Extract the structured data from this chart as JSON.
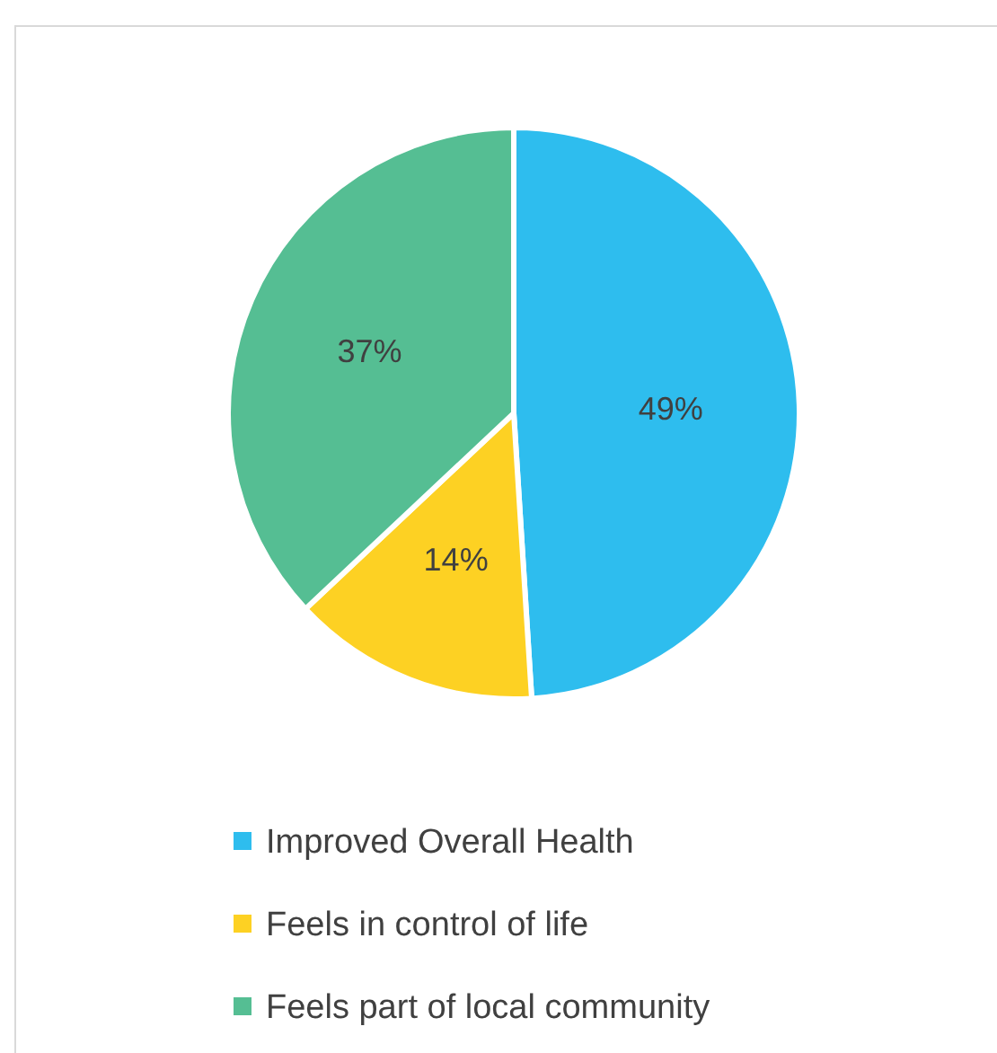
{
  "chart_data": {
    "type": "pie",
    "categories": [
      "Improved Overall Health",
      "Feels in control of life",
      "Feels part of local community"
    ],
    "values": [
      49,
      14,
      37
    ],
    "colors": [
      "#2ebdee",
      "#fdd123",
      "#55be93"
    ],
    "value_labels": [
      "49%",
      "14%",
      "37%"
    ],
    "legend": "bottom"
  }
}
